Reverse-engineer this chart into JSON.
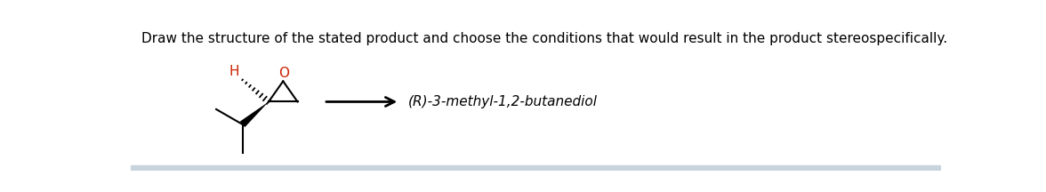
{
  "title_text": "Draw the structure of the stated product and choose the conditions that would result in the product stereospecifically.",
  "title_color": "#000000",
  "title_fontsize": 11,
  "product_text": "(R)-3-methyl-1,2-butanediol",
  "product_text_color": "#000000",
  "product_fontsize": 11,
  "bg_color": "#ffffff",
  "bottom_bar_color": "#c8d4dc",
  "label_H_color": "#cc2200",
  "label_O_color": "#cc2200"
}
